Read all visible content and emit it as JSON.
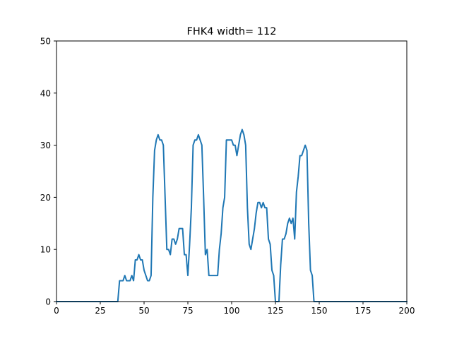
{
  "chart_data": {
    "type": "line",
    "title": "FHK4 width= 112",
    "xlabel": "",
    "ylabel": "",
    "xlim": [
      0,
      200
    ],
    "ylim": [
      0,
      50
    ],
    "xticks": [
      0,
      25,
      50,
      75,
      100,
      125,
      150,
      175,
      200
    ],
    "yticks": [
      0,
      10,
      20,
      30,
      40,
      50
    ],
    "grid": false,
    "series": [
      {
        "color": "#1f77b4",
        "x": [
          0,
          35,
          36,
          37,
          38,
          39,
          40,
          41,
          42,
          43,
          44,
          45,
          46,
          47,
          48,
          49,
          50,
          51,
          52,
          53,
          54,
          55,
          56,
          57,
          58,
          59,
          60,
          61,
          62,
          63,
          64,
          65,
          66,
          67,
          68,
          69,
          70,
          71,
          72,
          73,
          74,
          75,
          76,
          77,
          78,
          79,
          80,
          81,
          82,
          83,
          84,
          85,
          86,
          87,
          88,
          89,
          90,
          91,
          92,
          93,
          94,
          95,
          96,
          97,
          98,
          99,
          100,
          101,
          102,
          103,
          104,
          105,
          106,
          107,
          108,
          109,
          110,
          111,
          112,
          113,
          114,
          115,
          116,
          117,
          118,
          119,
          120,
          121,
          122,
          123,
          124,
          125,
          126,
          127,
          128,
          129,
          130,
          131,
          132,
          133,
          134,
          135,
          136,
          137,
          138,
          139,
          140,
          141,
          142,
          143,
          144,
          145,
          146,
          147,
          148,
          200
        ],
        "y": [
          0,
          0,
          4,
          4,
          4,
          5,
          4,
          4,
          4,
          5,
          4,
          8,
          8,
          9,
          8,
          8,
          6,
          5,
          4,
          4,
          5,
          20,
          29,
          31,
          32,
          31,
          31,
          30,
          20,
          10,
          10,
          9,
          12,
          12,
          11,
          12,
          14,
          14,
          14,
          9,
          9,
          5,
          11,
          18,
          30,
          31,
          31,
          32,
          31,
          30,
          20,
          9,
          10,
          5,
          5,
          5,
          5,
          5,
          5,
          10,
          13,
          18,
          20,
          31,
          31,
          31,
          31,
          30,
          30,
          28,
          30,
          32,
          33,
          32,
          30,
          18,
          11,
          10,
          12,
          14,
          17,
          19,
          19,
          18,
          19,
          18,
          18,
          12,
          11,
          6,
          5,
          0,
          0,
          0,
          7,
          12,
          12,
          13,
          15,
          16,
          15,
          16,
          12,
          21,
          24,
          28,
          28,
          29,
          30,
          29,
          15,
          6,
          5,
          0,
          0,
          0
        ]
      }
    ]
  }
}
